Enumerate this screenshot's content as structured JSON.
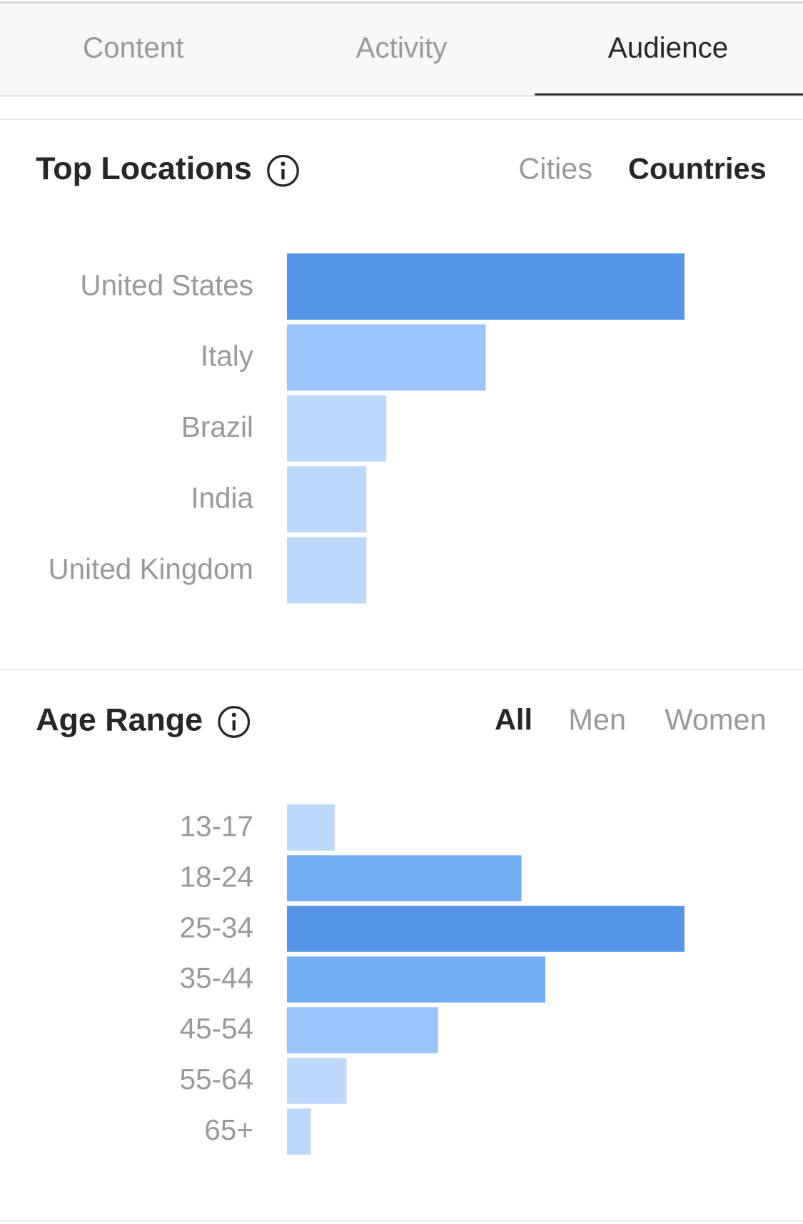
{
  "tabs": {
    "items": [
      "Content",
      "Activity",
      "Audience"
    ],
    "selected": 2
  },
  "chart_data": [
    {
      "type": "bar",
      "orientation": "horizontal",
      "title": "Top Locations",
      "toggles": {
        "items": [
          "Cities",
          "Countries"
        ],
        "selected": 1
      },
      "categories": [
        "United States",
        "Italy",
        "Brazil",
        "India",
        "United Kingdom"
      ],
      "values": [
        100,
        50,
        25,
        20,
        20
      ],
      "colors": [
        "#5495e8",
        "#98c4f9",
        "#bcd8fb",
        "#bcd8fb",
        "#bcd8fb"
      ],
      "xlim": [
        0,
        100
      ]
    },
    {
      "type": "bar",
      "orientation": "horizontal",
      "title": "Age Range",
      "toggles": {
        "items": [
          "All",
          "Men",
          "Women"
        ],
        "selected": 0
      },
      "categories": [
        "13-17",
        "18-24",
        "25-34",
        "35-44",
        "45-54",
        "55-64",
        "65+"
      ],
      "values": [
        12,
        59,
        100,
        65,
        38,
        15,
        6
      ],
      "colors": [
        "#bcd8fb",
        "#73adf6",
        "#5495e8",
        "#73adf6",
        "#98c4f9",
        "#bcd8fb",
        "#bcd8fb"
      ],
      "xlim": [
        0,
        100
      ]
    }
  ]
}
